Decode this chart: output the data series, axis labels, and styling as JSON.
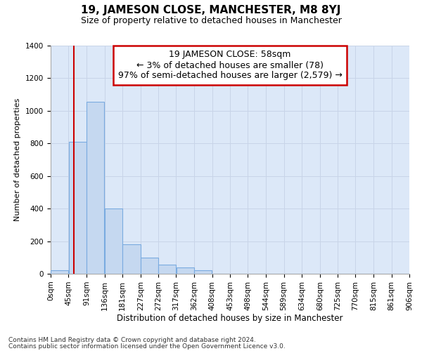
{
  "title1": "19, JAMESON CLOSE, MANCHESTER, M8 8YJ",
  "title2": "Size of property relative to detached houses in Manchester",
  "xlabel": "Distribution of detached houses by size in Manchester",
  "ylabel": "Number of detached properties",
  "bin_edges": [
    0,
    45,
    91,
    136,
    181,
    227,
    272,
    317,
    362,
    408,
    453,
    498,
    544,
    589,
    634,
    680,
    725,
    770,
    815,
    861,
    906
  ],
  "bin_labels": [
    "0sqm",
    "45sqm",
    "91sqm",
    "136sqm",
    "181sqm",
    "227sqm",
    "272sqm",
    "317sqm",
    "362sqm",
    "408sqm",
    "453sqm",
    "498sqm",
    "544sqm",
    "589sqm",
    "634sqm",
    "680sqm",
    "725sqm",
    "770sqm",
    "815sqm",
    "861sqm",
    "906sqm"
  ],
  "bar_heights": [
    22,
    810,
    1055,
    400,
    182,
    100,
    55,
    38,
    20,
    0,
    0,
    0,
    0,
    0,
    0,
    0,
    0,
    0,
    0,
    0
  ],
  "bar_color": "#c5d8f0",
  "bar_edge_color": "#7aabe0",
  "ylim": [
    0,
    1400
  ],
  "yticks": [
    0,
    200,
    400,
    600,
    800,
    1000,
    1200,
    1400
  ],
  "red_line_x": 58,
  "annotation_text": "19 JAMESON CLOSE: 58sqm\n← 3% of detached houses are smaller (78)\n97% of semi-detached houses are larger (2,579) →",
  "annotation_box_color": "#ffffff",
  "annotation_box_edge": "#cc0000",
  "footer1": "Contains HM Land Registry data © Crown copyright and database right 2024.",
  "footer2": "Contains public sector information licensed under the Open Government Licence v3.0.",
  "grid_color": "#c8d4e8",
  "bg_color": "#dce8f8",
  "title1_fontsize": 11,
  "title2_fontsize": 9,
  "annotation_fontsize": 9,
  "ylabel_fontsize": 8,
  "xlabel_fontsize": 8.5,
  "footer_fontsize": 6.5,
  "tick_fontsize": 7.5
}
